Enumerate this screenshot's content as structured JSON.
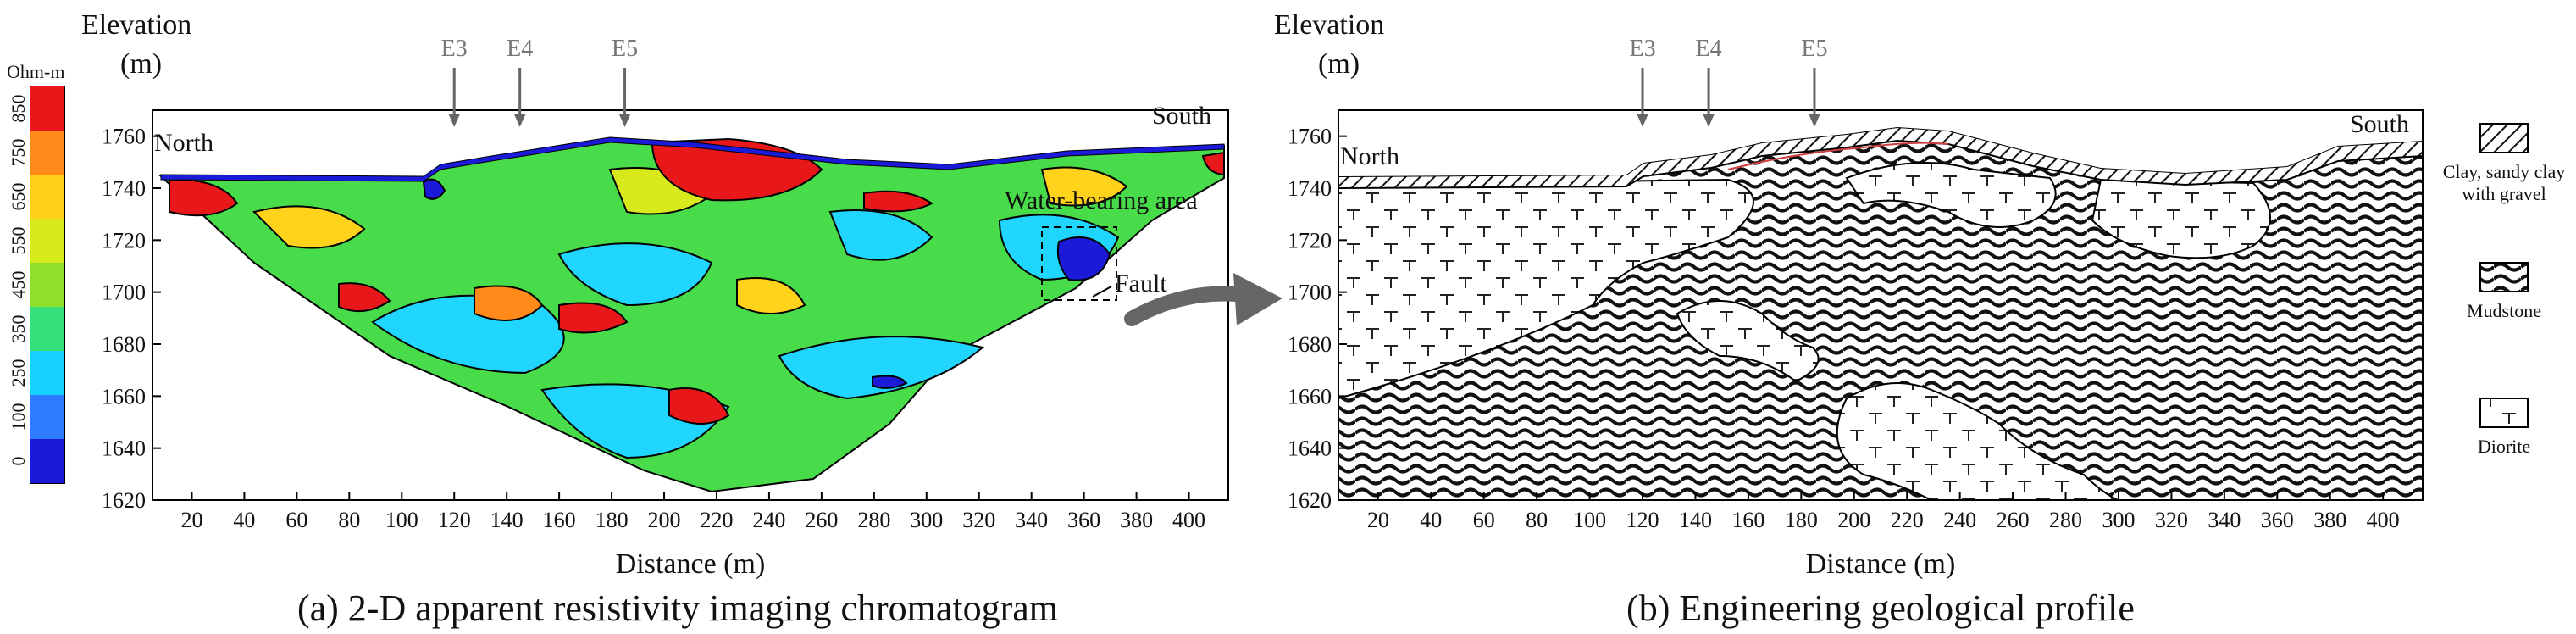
{
  "panel_a": {
    "caption": "(a) 2-D apparent resistivity imaging chromatogram",
    "y_label_1": "Elevation",
    "y_label_2": "(m)",
    "x_label": "Distance (m)",
    "direction_left": "North",
    "direction_right": "South",
    "markers": [
      "E3",
      "E4",
      "E5"
    ],
    "annotation_water": "Water-bearing area",
    "annotation_fault": "Fault",
    "colorbar_unit": "Ohm-m",
    "colorbar_ticks": [
      "0",
      "100",
      "250",
      "350",
      "450",
      "550",
      "650",
      "750",
      "850"
    ],
    "colorbar_colors": [
      "#1a1ad8",
      "#2f7bff",
      "#17d2ff",
      "#33e07a",
      "#8fe02a",
      "#d6ea1c",
      "#ffcf1a",
      "#ff8a1a",
      "#e8181a"
    ]
  },
  "panel_b": {
    "caption": "(b) Engineering geological profile",
    "y_label_1": "Elevation",
    "y_label_2": "(m)",
    "x_label": "Distance (m)",
    "direction_left": "North",
    "direction_right": "South",
    "markers": [
      "E3",
      "E4",
      "E5"
    ],
    "legend": [
      {
        "key": "clay",
        "label_1": "Clay, sandy clay",
        "label_2": "with gravel"
      },
      {
        "key": "mudstone",
        "label_1": "Mudstone",
        "label_2": ""
      },
      {
        "key": "diorite",
        "label_1": "Diorite",
        "label_2": ""
      }
    ]
  },
  "axes": {
    "y_ticks": [
      "1620",
      "1640",
      "1660",
      "1680",
      "1700",
      "1720",
      "1740",
      "1760"
    ],
    "x_ticks": [
      "20",
      "40",
      "60",
      "80",
      "100",
      "120",
      "140",
      "160",
      "180",
      "200",
      "220",
      "240",
      "260",
      "280",
      "300",
      "320",
      "340",
      "360",
      "380",
      "400"
    ]
  }
}
